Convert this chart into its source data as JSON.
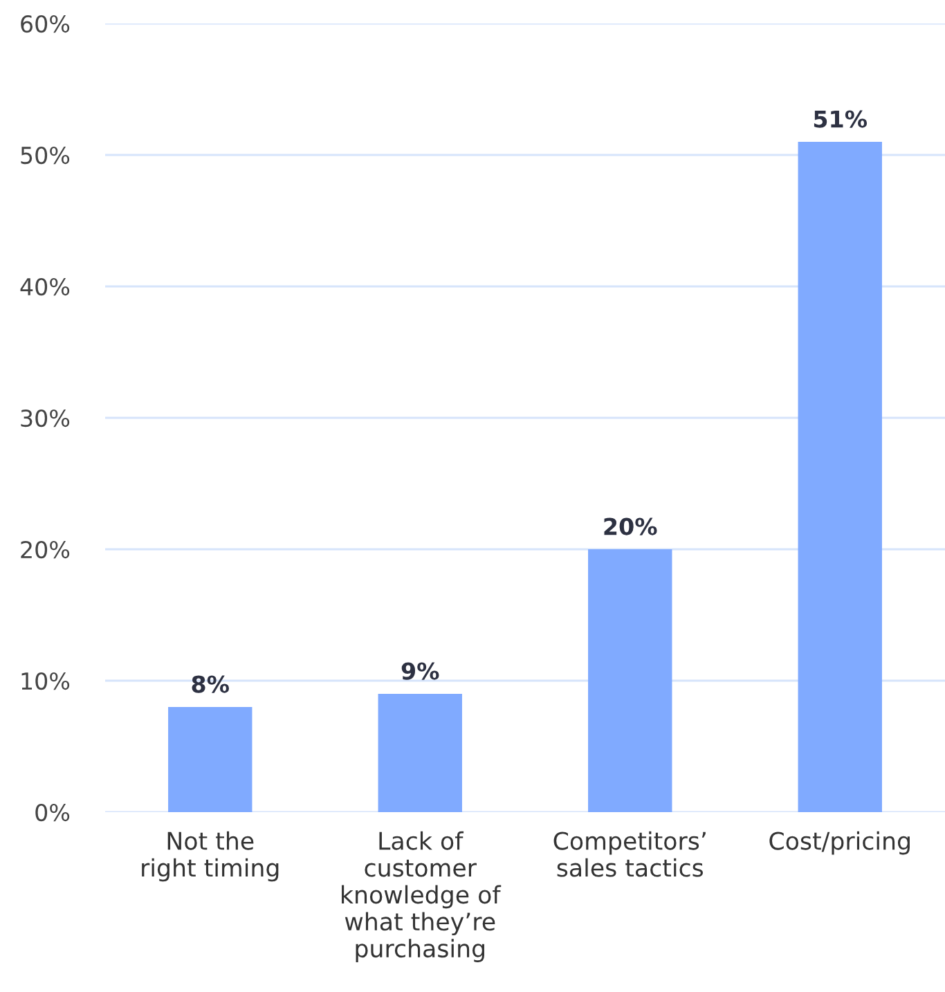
{
  "chart_data": {
    "type": "bar",
    "categories": [
      "Not the\nright timing",
      "Lack of\ncustomer\nknowledge of\nwhat they’re\npurchasing",
      "Competitors’\nsales tactics",
      "Cost/pricing"
    ],
    "values": [
      8,
      9,
      20,
      51
    ],
    "value_labels": [
      "8%",
      "9%",
      "20%",
      "51%"
    ],
    "color": "#80aaff",
    "ylim": [
      0,
      60
    ],
    "yticks": [
      {
        "value": 0,
        "label": "0%"
      },
      {
        "value": 10,
        "label": "10%"
      },
      {
        "value": 20,
        "label": "20%"
      },
      {
        "value": 30,
        "label": "30%"
      },
      {
        "value": 40,
        "label": "40%"
      },
      {
        "value": 50,
        "label": "50%"
      },
      {
        "value": 60,
        "label": "60%"
      }
    ],
    "grid": "y"
  }
}
